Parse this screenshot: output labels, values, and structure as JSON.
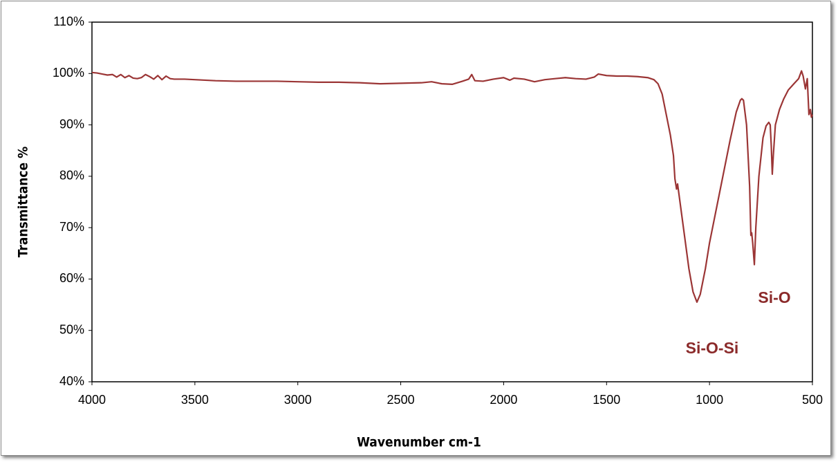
{
  "chart_data": {
    "type": "line",
    "xlabel": "Wavenumber cm-1",
    "ylabel": "Transmittance %",
    "annotations": [
      "Si-O-Si",
      "Si-O"
    ],
    "color": "#9b3535",
    "grid": false,
    "xlim": [
      4000,
      500
    ],
    "xticks": [
      4000,
      3500,
      3000,
      2500,
      2000,
      1500,
      1000,
      500
    ],
    "ylim": [
      40,
      110
    ],
    "yticks": [
      {
        "value": 40,
        "label": "40%"
      },
      {
        "value": 50,
        "label": "50%"
      },
      {
        "value": 60,
        "label": "60%"
      },
      {
        "value": 70,
        "label": "70%"
      },
      {
        "value": 80,
        "label": "80%"
      },
      {
        "value": 90,
        "label": "90%"
      },
      {
        "value": 100,
        "label": "100%"
      },
      {
        "value": 110,
        "label": "110%"
      }
    ],
    "x": [
      4000,
      3975,
      3950,
      3925,
      3900,
      3880,
      3860,
      3840,
      3820,
      3800,
      3780,
      3760,
      3740,
      3720,
      3700,
      3680,
      3660,
      3640,
      3620,
      3600,
      3550,
      3500,
      3400,
      3300,
      3200,
      3100,
      3000,
      2900,
      2800,
      2700,
      2600,
      2500,
      2400,
      2350,
      2300,
      2250,
      2200,
      2170,
      2155,
      2140,
      2100,
      2050,
      2000,
      1970,
      1950,
      1900,
      1850,
      1800,
      1750,
      1700,
      1650,
      1600,
      1560,
      1540,
      1500,
      1450,
      1400,
      1350,
      1300,
      1270,
      1250,
      1230,
      1210,
      1190,
      1175,
      1168,
      1160,
      1155,
      1140,
      1120,
      1100,
      1080,
      1061,
      1045,
      1020,
      1000,
      950,
      900,
      870,
      850,
      843,
      835,
      820,
      805,
      799,
      795,
      790,
      782,
      775,
      760,
      740,
      725,
      712,
      705,
      700,
      695,
      690,
      680,
      660,
      640,
      617,
      590,
      567,
      553,
      545,
      534,
      525,
      517,
      510,
      505,
      500
    ],
    "values": [
      100.2,
      100.1,
      99.9,
      99.7,
      99.8,
      99.3,
      99.8,
      99.2,
      99.6,
      99.1,
      99.0,
      99.2,
      99.8,
      99.4,
      98.9,
      99.6,
      98.8,
      99.5,
      99.0,
      98.9,
      98.9,
      98.8,
      98.6,
      98.5,
      98.5,
      98.5,
      98.4,
      98.3,
      98.3,
      98.2,
      98.0,
      98.1,
      98.2,
      98.4,
      98.0,
      97.9,
      98.5,
      98.9,
      99.8,
      98.6,
      98.5,
      98.9,
      99.2,
      98.7,
      99.1,
      98.9,
      98.4,
      98.8,
      99.0,
      99.2,
      99.0,
      98.9,
      99.3,
      99.9,
      99.6,
      99.5,
      99.5,
      99.4,
      99.2,
      98.8,
      98.0,
      96.0,
      92.0,
      88.0,
      84.0,
      79.5,
      77.5,
      78.5,
      74.0,
      68.0,
      62.0,
      57.5,
      55.5,
      57.0,
      62.0,
      67.0,
      77.0,
      87.0,
      92.5,
      94.8,
      95.1,
      94.8,
      90.0,
      78.0,
      68.5,
      69.0,
      67.0,
      62.8,
      70.0,
      80.0,
      87.5,
      89.8,
      90.5,
      90.0,
      86.0,
      80.4,
      84.0,
      90.0,
      93.0,
      95.0,
      96.8,
      98.0,
      99.0,
      100.5,
      99.5,
      97.0,
      99.0,
      92.0,
      93.0,
      91.5,
      92.0
    ]
  }
}
